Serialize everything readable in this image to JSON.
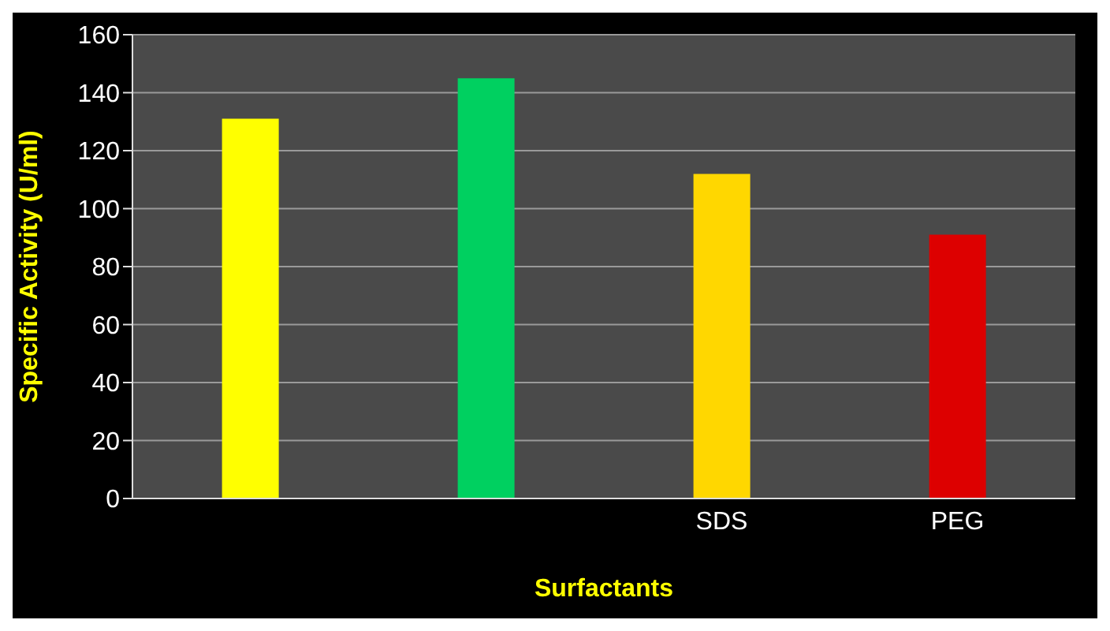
{
  "chart_data": {
    "type": "bar",
    "xlabel": "Surfactants",
    "ylabel": "Specific Activity (U/ml)",
    "categories": [
      null,
      null,
      "SDS",
      "PEG"
    ],
    "values": [
      131,
      145,
      112,
      91
    ],
    "colors": [
      "#ffff00",
      "#00d060",
      "#ffd700",
      "#dd0000"
    ],
    "ylim": [
      0,
      160
    ],
    "yticks": [
      0,
      20,
      40,
      60,
      80,
      100,
      120,
      140,
      160
    ],
    "grid": "y"
  }
}
